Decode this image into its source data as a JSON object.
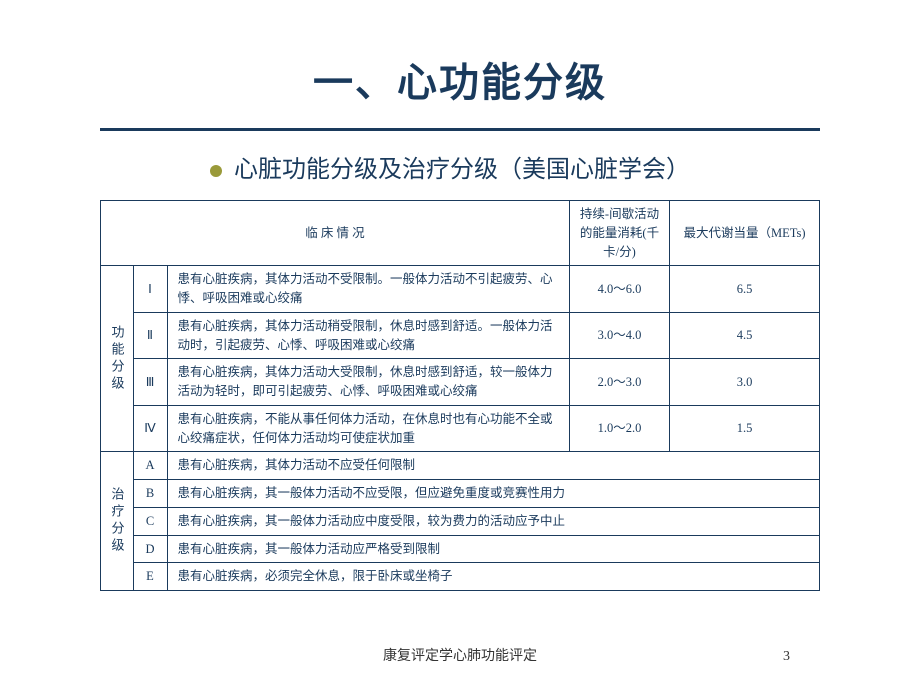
{
  "colors": {
    "primary": "#1a3a5c",
    "bullet": "#9a9a3a",
    "bg": "#ffffff"
  },
  "main_title": "一、心功能分级",
  "subtitle": "心脏功能分级及治疗分级（美国心脏学会）",
  "headers": {
    "clinical": "临 床 情 况",
    "energy": "持续-间歇活动的能量消耗(千卡/分)",
    "mets": "最大代谢当量（METs)"
  },
  "function_label": "功能分级",
  "treatment_label": "治疗分级",
  "function_rows": [
    {
      "level": "Ⅰ",
      "desc": "患有心脏疾病，其体力活动不受限制。一般体力活动不引起疲劳、心悸、呼吸困难或心绞痛",
      "energy": "4.0～6.0",
      "mets": "6.5"
    },
    {
      "level": "Ⅱ",
      "desc": "患有心脏疾病，其体力活动稍受限制，休息时感到舒适。一般体力活动时，引起疲劳、心悸、呼吸困难或心绞痛",
      "energy": "3.0～4.0",
      "mets": "4.5"
    },
    {
      "level": "Ⅲ",
      "desc": "患有心脏疾病，其体力活动大受限制，休息时感到舒适，较一般体力活动为轻时，即可引起疲劳、心悸、呼吸困难或心绞痛",
      "energy": "2.0～3.0",
      "mets": "3.0"
    },
    {
      "level": "Ⅳ",
      "desc": "患有心脏疾病，不能从事任何体力活动，在休息时也有心功能不全或心绞痛症状，任何体力活动均可使症状加重",
      "energy": "1.0～2.0",
      "mets": "1.5"
    }
  ],
  "treatment_rows": [
    {
      "level": "A",
      "desc": "患有心脏疾病，其体力活动不应受任何限制"
    },
    {
      "level": "B",
      "desc": "患有心脏疾病，其一般体力活动不应受限，但应避免重度或竞赛性用力"
    },
    {
      "level": "C",
      "desc": "患有心脏疾病，其一般体力活动应中度受限，较为费力的活动应予中止"
    },
    {
      "level": "D",
      "desc": "患有心脏疾病，其一般体力活动应严格受到限制"
    },
    {
      "level": "E",
      "desc": "患有心脏疾病，必须完全休息，限于卧床或坐椅子"
    }
  ],
  "footer_text": "康复评定学心肺功能评定",
  "page_number": "3"
}
